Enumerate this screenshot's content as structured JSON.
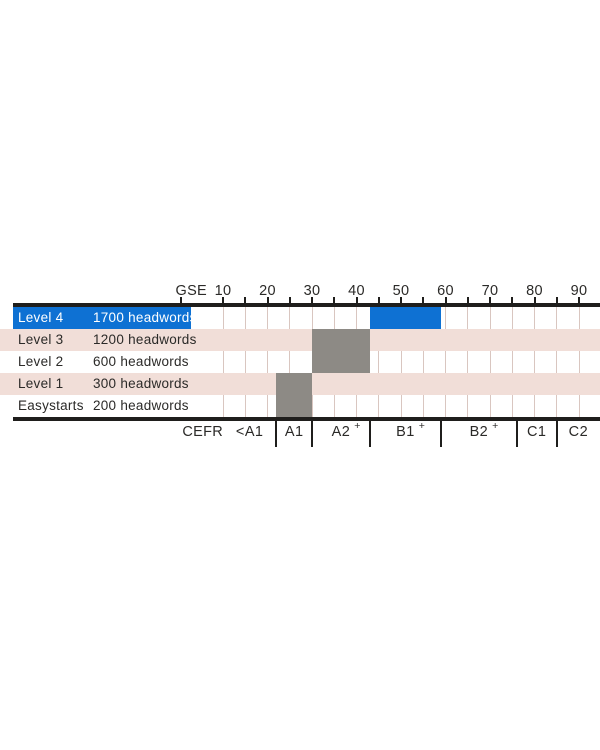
{
  "colors": {
    "blue": "#0e71d3",
    "gray_bar": "#8d8a85",
    "pink_band": "#f1ded8",
    "gridline": "#d9c6c0",
    "axis_line": "#1f1e1c",
    "text_dark": "#2b2a28",
    "text_light": "#ffffff"
  },
  "chart_data": {
    "type": "bar",
    "subtype": "horizontal-span-levels",
    "title": "",
    "top_axis": {
      "label": "GSE",
      "tick_min": 10,
      "tick_max": 90,
      "minor_step": 5,
      "label_step": 10,
      "labels": [
        "10",
        "20",
        "30",
        "40",
        "50",
        "60",
        "70",
        "80",
        "90"
      ],
      "origin_tick": true
    },
    "rows": [
      {
        "name": "Level 4",
        "headwords": "1700 headwords",
        "band": "blue"
      },
      {
        "name": "Level 3",
        "headwords": "1200 headwords",
        "band": "pink"
      },
      {
        "name": "Level 2",
        "headwords": "600 headwords",
        "band": "white"
      },
      {
        "name": "Level 1",
        "headwords": "300 headwords",
        "band": "pink"
      },
      {
        "name": "Easystarts",
        "headwords": "200 headwords",
        "band": "white"
      }
    ],
    "bars": [
      {
        "row_start": 0,
        "row_end": 0,
        "gse_start": 43,
        "gse_end": 59,
        "color": "blue"
      },
      {
        "row_start": 1,
        "row_end": 2,
        "gse_start": 30,
        "gse_end": 43,
        "color": "gray"
      },
      {
        "row_start": 3,
        "row_end": 4,
        "gse_start": 22,
        "gse_end": 30,
        "color": "gray"
      }
    ],
    "bottom_axis": {
      "label": "CEFR",
      "zones": [
        {
          "label": "<A1",
          "sup": "",
          "gse_start": 10,
          "gse_end": 22
        },
        {
          "label": "A1",
          "sup": "",
          "gse_start": 22,
          "gse_end": 30
        },
        {
          "label": "A2",
          "sup": "+",
          "gse_start": 30,
          "gse_end": 43
        },
        {
          "label": "B1",
          "sup": "+",
          "gse_start": 43,
          "gse_end": 59
        },
        {
          "label": "B2",
          "sup": "+",
          "gse_start": 59,
          "gse_end": 76
        },
        {
          "label": "C1",
          "sup": "",
          "gse_start": 76,
          "gse_end": 85
        },
        {
          "label": "C2",
          "sup": "",
          "gse_start": 85,
          "gse_end": null
        }
      ]
    }
  }
}
